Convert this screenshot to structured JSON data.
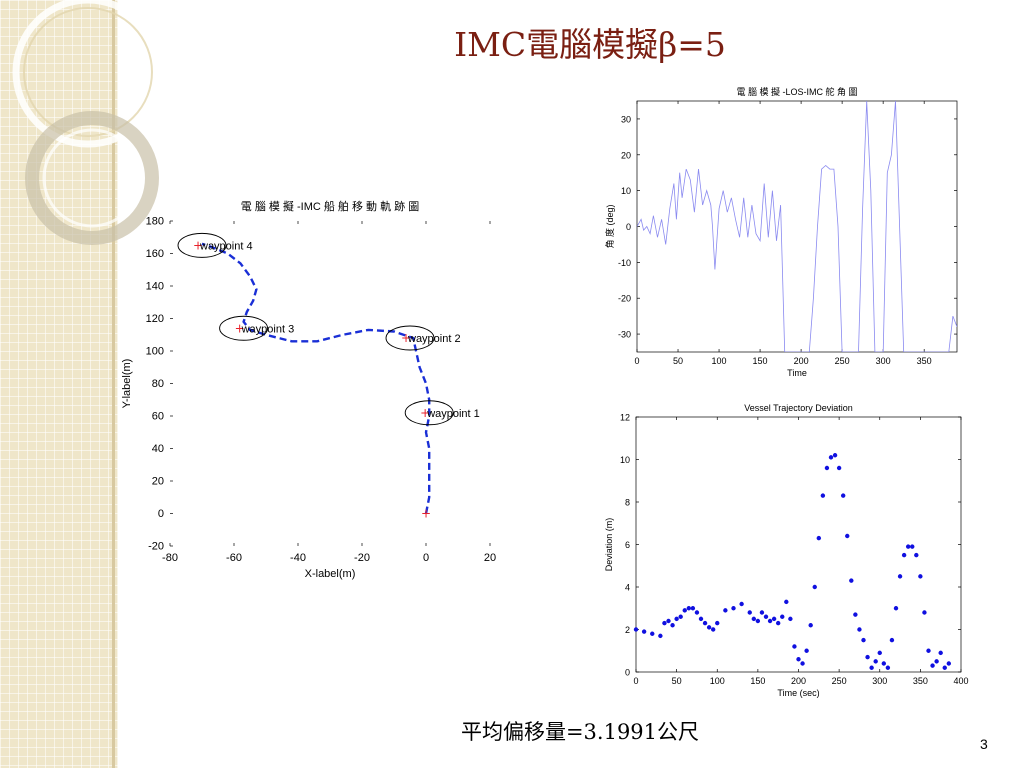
{
  "slide": {
    "title": "IMC電腦模擬β=5",
    "average_text": "平均偏移量=3.1991公尺",
    "page_number": "3"
  },
  "colors": {
    "title": "#7a1f12",
    "trajectory": "#1a2fd6",
    "waypoint_marker": "#e8202a",
    "rudder_line": "#8a8af0",
    "deviation_dots": "#1010e0",
    "side_band": "#efe6c9"
  },
  "chart_data": [
    {
      "type": "line",
      "title": "電 腦 模 擬 -IMC 船 舶 移 動 軌 跡 圖",
      "xlabel": "X-label(m)",
      "ylabel": "Y-label(m)",
      "xlim": [
        -80,
        20
      ],
      "ylim": [
        -20,
        180
      ],
      "x_ticks": [
        "-80",
        "-60",
        "-40",
        "-20",
        "0",
        "20"
      ],
      "y_ticks": [
        "-20",
        "0",
        "20",
        "40",
        "60",
        "80",
        "100",
        "120",
        "140",
        "160",
        "180"
      ],
      "series": [
        {
          "style": "dashed",
          "x": [
            0,
            1,
            1,
            1,
            1,
            0,
            1,
            1,
            0,
            -2,
            -4,
            -10,
            -18,
            -26,
            -34,
            -42,
            -50,
            -55,
            -57,
            -56,
            -54,
            -53,
            -55,
            -58,
            -62,
            -67,
            -70
          ],
          "y": [
            0,
            10,
            20,
            30,
            40,
            50,
            60,
            70,
            80,
            90,
            108,
            112,
            113,
            110,
            106,
            106,
            110,
            113,
            118,
            124,
            131,
            138,
            146,
            154,
            160,
            164,
            166
          ]
        }
      ],
      "waypoints": [
        {
          "label": "waypoint 1",
          "x": 1,
          "y": 62
        },
        {
          "label": "waypoint 2",
          "x": -5,
          "y": 108
        },
        {
          "label": "waypoint 3",
          "x": -57,
          "y": 114
        },
        {
          "label": "waypoint 4",
          "x": -70,
          "y": 165
        }
      ],
      "start_point": {
        "x": 0,
        "y": 0
      }
    },
    {
      "type": "line",
      "title": "電 腦 模 擬 -LOS-IMC 舵 角 圖",
      "xlabel": "Time",
      "ylabel": "角 度 (deg)",
      "xlim": [
        0,
        390
      ],
      "ylim": [
        -35,
        35
      ],
      "x_ticks": [
        "0",
        "50",
        "100",
        "150",
        "200",
        "250",
        "300",
        "350"
      ],
      "y_ticks": [
        "-30",
        "-20",
        "-10",
        "0",
        "10",
        "20",
        "30"
      ],
      "series": [
        {
          "x": [
            0,
            5,
            8,
            12,
            16,
            20,
            25,
            30,
            35,
            40,
            45,
            48,
            52,
            55,
            60,
            65,
            70,
            75,
            80,
            85,
            90,
            92,
            95,
            100,
            105,
            110,
            115,
            120,
            125,
            130,
            135,
            140,
            145,
            150,
            155,
            160,
            165,
            170,
            175,
            180,
            185,
            190,
            200,
            210,
            215,
            220,
            225,
            230,
            235,
            240,
            245,
            250,
            255,
            260,
            265,
            270,
            275,
            280,
            285,
            290,
            295,
            300,
            305,
            310,
            315,
            320,
            325,
            330,
            335,
            340,
            345,
            350,
            355,
            360,
            365,
            370,
            375,
            380,
            385,
            390
          ],
          "y": [
            0,
            2,
            -1,
            0,
            -2,
            3,
            -3,
            2,
            -5,
            5,
            12,
            2,
            15,
            8,
            16,
            13,
            4,
            16,
            6,
            10,
            6,
            0,
            -12,
            5,
            10,
            4,
            8,
            2,
            -3,
            8,
            -3,
            6,
            -2,
            -4,
            12,
            -3,
            10,
            -4,
            6,
            -35,
            -35,
            -35,
            -35,
            -35,
            -20,
            0,
            16,
            17,
            16,
            16,
            0,
            -35,
            -35,
            -35,
            -35,
            -35,
            5,
            35,
            10,
            -35,
            -35,
            -35,
            15,
            20,
            35,
            0,
            -35,
            -35,
            -35,
            -35,
            -35,
            -35,
            -35,
            -35,
            -35,
            -35,
            -35,
            -35,
            -25,
            -28
          ]
        }
      ]
    },
    {
      "type": "scatter",
      "title": "Vessel Trajectory Deviation",
      "xlabel": "Time (sec)",
      "ylabel": "Deviation (m)",
      "xlim": [
        0,
        400
      ],
      "ylim": [
        0,
        12
      ],
      "x_ticks": [
        "0",
        "50",
        "100",
        "150",
        "200",
        "250",
        "300",
        "350",
        "400"
      ],
      "y_ticks": [
        "0",
        "2",
        "4",
        "6",
        "8",
        "10",
        "12"
      ],
      "series": [
        {
          "x": [
            0,
            10,
            20,
            30,
            35,
            40,
            45,
            50,
            55,
            60,
            65,
            70,
            75,
            80,
            85,
            90,
            95,
            100,
            110,
            120,
            130,
            140,
            145,
            150,
            155,
            160,
            165,
            170,
            175,
            180,
            185,
            190,
            195,
            200,
            205,
            210,
            215,
            220,
            225,
            230,
            235,
            240,
            245,
            250,
            255,
            260,
            265,
            270,
            275,
            280,
            285,
            290,
            295,
            300,
            305,
            310,
            315,
            320,
            325,
            330,
            335,
            340,
            345,
            350,
            355,
            360,
            365,
            370,
            375,
            380,
            385
          ],
          "y": [
            2.0,
            1.9,
            1.8,
            1.7,
            2.3,
            2.4,
            2.2,
            2.5,
            2.6,
            2.9,
            3.0,
            3.0,
            2.8,
            2.5,
            2.3,
            2.1,
            2.0,
            2.3,
            2.9,
            3.0,
            3.2,
            2.8,
            2.5,
            2.4,
            2.8,
            2.6,
            2.4,
            2.5,
            2.3,
            2.6,
            3.3,
            2.5,
            1.2,
            0.6,
            0.4,
            1.0,
            2.2,
            4.0,
            6.3,
            8.3,
            9.6,
            10.1,
            10.2,
            9.6,
            8.3,
            6.4,
            4.3,
            2.7,
            2.0,
            1.5,
            0.7,
            0.2,
            0.5,
            0.9,
            0.4,
            0.2,
            1.5,
            3.0,
            4.5,
            5.5,
            5.9,
            5.9,
            5.5,
            4.5,
            2.8,
            1.0,
            0.3,
            0.5,
            0.9,
            0.2,
            0.4
          ]
        }
      ]
    }
  ]
}
